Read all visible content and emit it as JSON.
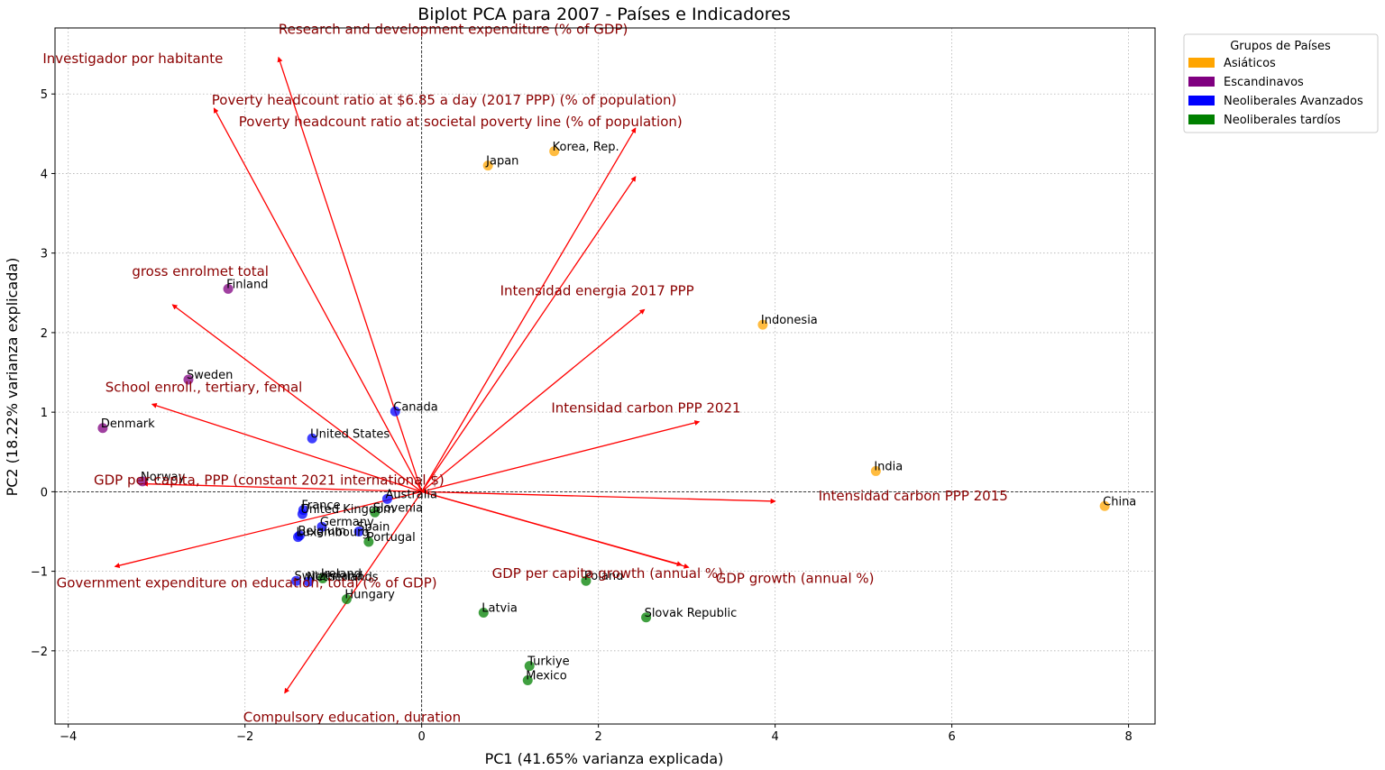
{
  "chart_data": {
    "type": "scatter",
    "title": "Biplot PCA para 2007 - Países e Indicadores",
    "xlabel": "PC1 (41.65% varianza explicada)",
    "ylabel": "PC2 (18.22% varianza explicada)",
    "xlim": [
      -4.15,
      8.3
    ],
    "ylim": [
      -2.92,
      5.83
    ],
    "xticks": [
      -4,
      -2,
      0,
      2,
      4,
      6,
      8
    ],
    "yticks": [
      -2,
      -1,
      0,
      1,
      2,
      3,
      4,
      5
    ],
    "grid": true,
    "legend": {
      "title": "Grupos de Países",
      "position": "outside-top-right",
      "entries": [
        {
          "label": "Asiáticos",
          "color": "#FFA500"
        },
        {
          "label": "Escandinavos",
          "color": "#800080"
        },
        {
          "label": "Neoliberales Avanzados",
          "color": "#0000FF"
        },
        {
          "label": "Neoliberales tardíos",
          "color": "#008000"
        }
      ]
    },
    "points": [
      {
        "label": "Japan",
        "x": 0.75,
        "y": 4.1,
        "group": 0
      },
      {
        "label": "Korea, Rep.",
        "x": 1.5,
        "y": 4.28,
        "group": 0
      },
      {
        "label": "Indonesia",
        "x": 3.86,
        "y": 2.1,
        "group": 0
      },
      {
        "label": "India",
        "x": 5.14,
        "y": 0.26,
        "group": 0
      },
      {
        "label": "China",
        "x": 7.73,
        "y": -0.18,
        "group": 0
      },
      {
        "label": "Finland",
        "x": -2.19,
        "y": 2.55,
        "group": 1
      },
      {
        "label": "Sweden",
        "x": -2.64,
        "y": 1.41,
        "group": 1
      },
      {
        "label": "Denmark",
        "x": -3.61,
        "y": 0.8,
        "group": 1
      },
      {
        "label": "Norway",
        "x": -3.16,
        "y": 0.13,
        "group": 1
      },
      {
        "label": "Canada",
        "x": -0.3,
        "y": 1.01,
        "group": 2
      },
      {
        "label": "United States",
        "x": -1.24,
        "y": 0.67,
        "group": 2
      },
      {
        "label": "Australia",
        "x": -0.39,
        "y": -0.09,
        "group": 2
      },
      {
        "label": "France",
        "x": -1.34,
        "y": -0.23,
        "group": 2
      },
      {
        "label": "United Kingdom",
        "x": -1.35,
        "y": -0.28,
        "group": 2
      },
      {
        "label": "Germany",
        "x": -1.13,
        "y": -0.44,
        "group": 2
      },
      {
        "label": "Spain",
        "x": -0.71,
        "y": -0.5,
        "group": 2
      },
      {
        "label": "Belgium",
        "x": -1.38,
        "y": -0.55,
        "group": 2
      },
      {
        "label": "Luxembourg",
        "x": -1.4,
        "y": -0.57,
        "group": 2
      },
      {
        "label": "Switzerland",
        "x": -1.42,
        "y": -1.12,
        "group": 2
      },
      {
        "label": "Netherlands",
        "x": -1.28,
        "y": -1.13,
        "group": 2
      },
      {
        "label": "Slovenia",
        "x": -0.53,
        "y": -0.26,
        "group": 3
      },
      {
        "label": "Portugal",
        "x": -0.6,
        "y": -0.63,
        "group": 3
      },
      {
        "label": "Ireland",
        "x": -1.12,
        "y": -1.09,
        "group": 3
      },
      {
        "label": "Hungary",
        "x": -0.85,
        "y": -1.35,
        "group": 3
      },
      {
        "label": "Poland",
        "x": 1.86,
        "y": -1.12,
        "group": 3
      },
      {
        "label": "Latvia",
        "x": 0.7,
        "y": -1.52,
        "group": 3
      },
      {
        "label": "Slovak Republic",
        "x": 2.54,
        "y": -1.58,
        "group": 3
      },
      {
        "label": "Turkiye",
        "x": 1.22,
        "y": -2.19,
        "group": 3
      },
      {
        "label": "Mexico",
        "x": 1.2,
        "y": -2.37,
        "group": 3
      }
    ],
    "loadings": [
      {
        "label": "Research and development expenditure (% of GDP)",
        "x": -1.62,
        "y": 5.46
      },
      {
        "label": "Investigador por habitante",
        "x": -2.35,
        "y": 4.82
      },
      {
        "label": "Poverty headcount ratio at $6.85 a day (2017 PPP) (% of population)",
        "x": 2.42,
        "y": 3.96
      },
      {
        "label": "Poverty headcount ratio at societal poverty line (% of population)",
        "x": 2.42,
        "y": 4.57
      },
      {
        "label": "gross enrolmet total",
        "x": -2.82,
        "y": 2.35
      },
      {
        "label": "Intensidad energia 2017 PPP",
        "x": 2.52,
        "y": 2.29
      },
      {
        "label": "School enroll., tertiary, femal",
        "x": -3.05,
        "y": 1.1
      },
      {
        "label": "Intensidad carbon PPP 2021",
        "x": 3.14,
        "y": 0.88
      },
      {
        "label": "GDP per capita, PPP (constant 2021 international $)",
        "x": -3.15,
        "y": 0.1
      },
      {
        "label": "Intensidad carbon PPP 2015",
        "x": 4.0,
        "y": -0.12
      },
      {
        "label": "GDP per capita growth (annual %)",
        "x": 3.02,
        "y": -0.95
      },
      {
        "label": "GDP growth (annual %)",
        "x": 2.94,
        "y": -0.92
      },
      {
        "label": "Government expenditure on education, total (% of GDP)",
        "x": -3.47,
        "y": -0.94
      },
      {
        "label": "Compulsory education, duration",
        "x": -1.55,
        "y": -2.53
      }
    ]
  }
}
